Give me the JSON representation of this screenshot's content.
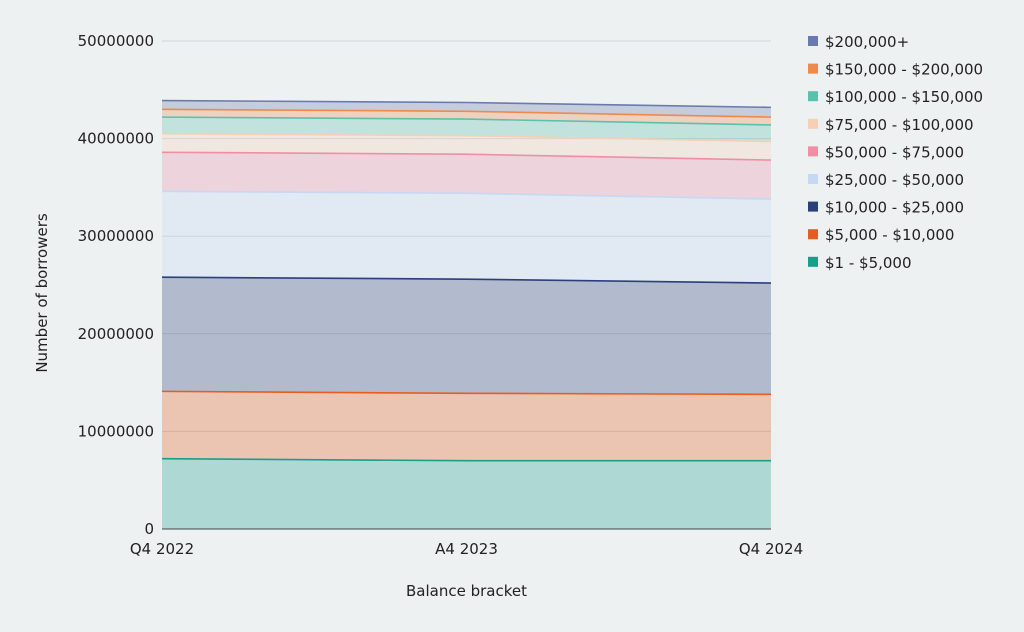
{
  "chart_data": {
    "type": "area",
    "stacked": true,
    "x": [
      "Q4 2022",
      "A4 2023",
      "Q4 2024"
    ],
    "xlabel": "Balance bracket",
    "ylabel": "Number of borrowers",
    "ylim": [
      0,
      50000000
    ],
    "yticks": [
      0,
      10000000,
      20000000,
      30000000,
      40000000,
      50000000
    ],
    "ytick_labels": [
      "0",
      "10000000",
      "20000000",
      "30000000",
      "40000000",
      "50000000"
    ],
    "grid": true,
    "legend_position": "right",
    "series": [
      {
        "name": "$1 - $5,000",
        "color": "#1a9e8a",
        "values": [
          7200000,
          7000000,
          7000000
        ]
      },
      {
        "name": "$5,000 - $10,000",
        "color": "#e85d1f",
        "values": [
          6900000,
          6900000,
          6800000
        ]
      },
      {
        "name": "$10,000 - $25,000",
        "color": "#2b3f7a",
        "values": [
          11700000,
          11700000,
          11400000
        ]
      },
      {
        "name": "$25,000 - $50,000",
        "color": "#c6d8f2",
        "values": [
          8800000,
          8800000,
          8600000
        ]
      },
      {
        "name": "$50,000 - $75,000",
        "color": "#f08fa4",
        "values": [
          4000000,
          4000000,
          4000000
        ]
      },
      {
        "name": "$75,000 - $100,000",
        "color": "#f5cfb6",
        "values": [
          1900000,
          1900000,
          1900000
        ]
      },
      {
        "name": "$100,000 - $150,000",
        "color": "#5fbfad",
        "values": [
          1700000,
          1700000,
          1700000
        ]
      },
      {
        "name": "$150,000 - $200,000",
        "color": "#ef8a4a",
        "values": [
          800000,
          800000,
          800000
        ]
      },
      {
        "name": "$200,000+",
        "color": "#6a7bab",
        "values": [
          900000,
          900000,
          1000000
        ]
      }
    ]
  }
}
